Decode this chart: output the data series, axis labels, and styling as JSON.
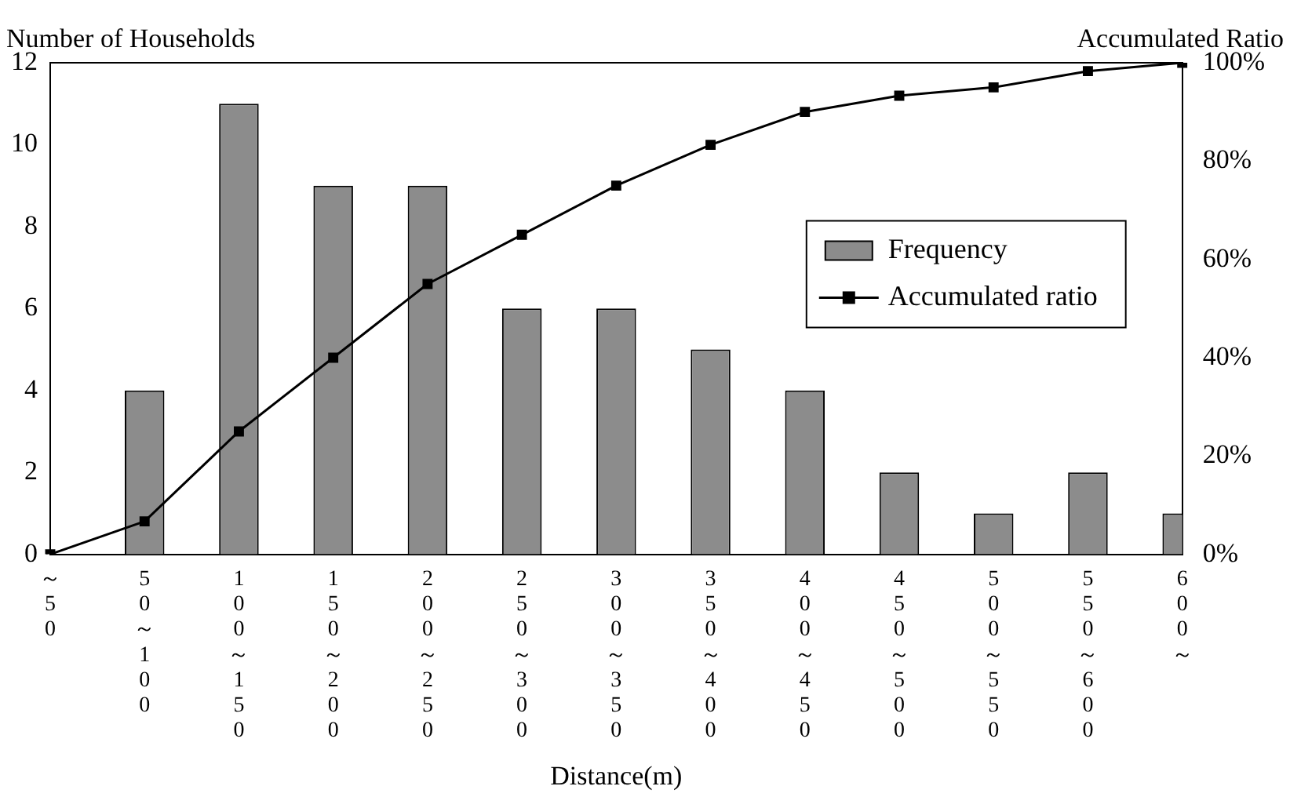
{
  "chart_data": {
    "type": "bar",
    "xlabel": "Distance(m)",
    "ylabel": "Number of Households",
    "y2label": "Accumulated Ratio",
    "categories": [
      "～50",
      "50～100",
      "100～150",
      "150～200",
      "200～250",
      "250～300",
      "300～350",
      "350～400",
      "400～450",
      "450～500",
      "500～550",
      "550～600",
      "600～"
    ],
    "series": [
      {
        "name": "Frequency",
        "color": "#8c8c8c",
        "values": [
          0,
          4,
          11,
          9,
          9,
          6,
          6,
          5,
          4,
          2,
          1,
          2,
          1
        ]
      },
      {
        "name": "Accumulated ratio",
        "type": "line",
        "axis": "y2",
        "color": "#000000",
        "values": [
          0,
          6.7,
          25,
          40,
          55,
          65,
          75,
          83.3,
          90,
          93.3,
          95,
          98.3,
          100
        ]
      }
    ],
    "ylim": [
      0,
      12
    ],
    "yticks": [
      0,
      2,
      4,
      6,
      8,
      10,
      12
    ],
    "y2lim": [
      0,
      100
    ],
    "y2ticks": [
      {
        "value": 0,
        "label": "0%"
      },
      {
        "value": 20,
        "label": "20%"
      },
      {
        "value": 40,
        "label": "40%"
      },
      {
        "value": 60,
        "label": "60%"
      },
      {
        "value": 80,
        "label": "80%"
      },
      {
        "value": 100,
        "label": "100%"
      }
    ],
    "legend": "center right",
    "marker": "square",
    "grid": false
  }
}
